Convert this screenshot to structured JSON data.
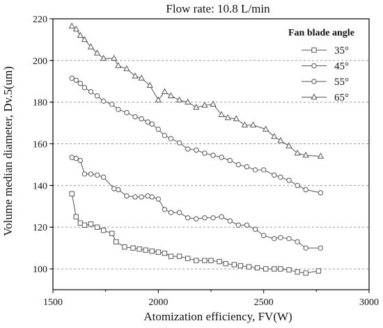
{
  "chart_data": {
    "type": "line",
    "title": "Flow rate: 10.8 L/min",
    "xlabel": "Atomization efficiency, FV(W)",
    "ylabel": "Volume median diameter, Dv.5(um)",
    "xlim": [
      1500,
      3000
    ],
    "ylim": [
      90,
      220
    ],
    "xticks": [
      1500,
      2000,
      2500,
      3000
    ],
    "yticks": [
      100,
      120,
      140,
      160,
      180,
      200,
      220
    ],
    "grid": "horizontal-dashed",
    "legend_title": "Fan blade angle",
    "legend_position": "top-right",
    "series": [
      {
        "name": "35°",
        "marker": "square",
        "x": [
          1590,
          1610,
          1630,
          1650,
          1680,
          1710,
          1740,
          1780,
          1800,
          1840,
          1880,
          1910,
          1940,
          1970,
          2000,
          2030,
          2060,
          2100,
          2140,
          2180,
          2220,
          2250,
          2290,
          2320,
          2360,
          2390,
          2430,
          2470,
          2510,
          2550,
          2580,
          2620,
          2660,
          2700,
          2760
        ],
        "y": [
          136,
          125,
          122,
          121,
          121.5,
          120,
          118.5,
          117,
          113,
          110.5,
          110,
          109.5,
          109,
          108.5,
          108,
          107.5,
          106,
          106,
          105,
          104,
          104,
          104,
          103.5,
          102.5,
          102,
          101.5,
          101,
          100.5,
          100,
          100,
          100,
          99.5,
          98.5,
          98,
          99
        ]
      },
      {
        "name": "45°",
        "marker": "circle",
        "x": [
          1590,
          1610,
          1630,
          1650,
          1680,
          1710,
          1740,
          1790,
          1810,
          1850,
          1890,
          1920,
          1950,
          1970,
          2000,
          2030,
          2060,
          2100,
          2140,
          2180,
          2220,
          2260,
          2300,
          2340,
          2380,
          2420,
          2460,
          2500,
          2550,
          2580,
          2620,
          2660,
          2700,
          2770
        ],
        "y": [
          153.5,
          153,
          152,
          145.5,
          145.5,
          145,
          144,
          138.5,
          138,
          135,
          134.5,
          134.5,
          135,
          134.5,
          133.5,
          128.5,
          127,
          127,
          124.5,
          124,
          124.5,
          124.5,
          125,
          123,
          121,
          121,
          119,
          116,
          114.5,
          115,
          114.5,
          113,
          110,
          110
        ]
      },
      {
        "name": "55°",
        "marker": "circle",
        "x": [
          1590,
          1610,
          1630,
          1650,
          1680,
          1710,
          1740,
          1780,
          1810,
          1850,
          1890,
          1920,
          1950,
          1970,
          2000,
          2030,
          2060,
          2100,
          2140,
          2180,
          2220,
          2260,
          2300,
          2340,
          2380,
          2420,
          2460,
          2500,
          2550,
          2580,
          2620,
          2660,
          2700,
          2770
        ],
        "y": [
          191.5,
          190.5,
          189,
          187,
          185,
          183,
          180.5,
          179,
          176.5,
          175,
          173,
          172,
          170.5,
          169.5,
          167,
          164,
          162.5,
          160.5,
          157.5,
          157,
          155.5,
          154.5,
          153.5,
          152,
          150,
          149,
          147.5,
          147.5,
          145,
          144,
          142.5,
          140,
          138,
          136.5
        ]
      },
      {
        "name": "65°",
        "marker": "triangle",
        "x": [
          1590,
          1610,
          1630,
          1650,
          1680,
          1710,
          1740,
          1790,
          1810,
          1850,
          1890,
          1920,
          1960,
          2000,
          2030,
          2060,
          2100,
          2140,
          2180,
          2220,
          2260,
          2300,
          2330,
          2370,
          2410,
          2450,
          2510,
          2550,
          2580,
          2620,
          2660,
          2700,
          2770
        ],
        "y": [
          216.5,
          215,
          212,
          210,
          206.5,
          203.5,
          201,
          201,
          197.5,
          196,
          192.5,
          191.5,
          188,
          181,
          185,
          183,
          181,
          180,
          177.5,
          178.5,
          179,
          174,
          172.5,
          172,
          169,
          169,
          167,
          163.5,
          161.5,
          159,
          155.5,
          154.5,
          154
        ]
      }
    ]
  }
}
